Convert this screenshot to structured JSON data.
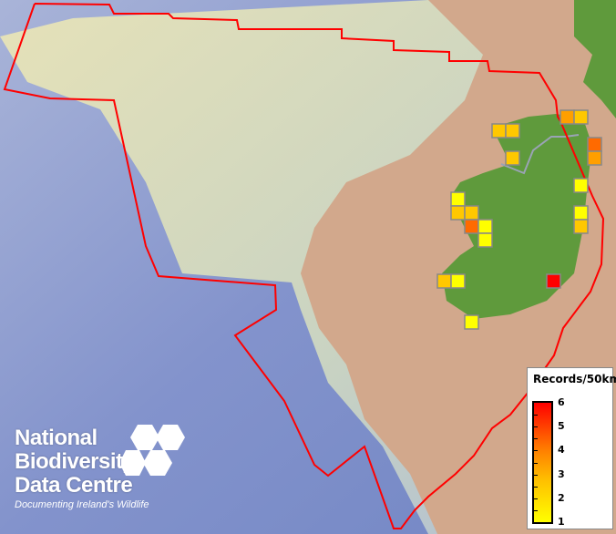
{
  "legend": {
    "title": "Records/50km",
    "ticks": [
      6,
      5,
      4,
      3,
      2,
      1
    ],
    "min": 1,
    "max": 6,
    "colors": {
      "low": "#ffff00",
      "high": "#ff0000"
    }
  },
  "logo": {
    "lines": [
      "National",
      "Biodiversity",
      "Data Centre"
    ],
    "tagline": "Documenting Ireland's Wildlife"
  },
  "colors": {
    "boundary": "#ff0000",
    "land": "#5f9a3c",
    "seabed_shallow": "#d4a98c",
    "deep": "#7d8fc8"
  },
  "records": [
    {
      "cell": "A",
      "count": 3
    },
    {
      "cell": "B",
      "count": 2
    },
    {
      "cell": "C",
      "count": 2
    },
    {
      "cell": "D",
      "count": 2
    },
    {
      "cell": "E",
      "count": 4
    },
    {
      "cell": "F",
      "count": 3
    },
    {
      "cell": "G",
      "count": 2
    },
    {
      "cell": "H",
      "count": 1
    },
    {
      "cell": "I",
      "count": 1
    },
    {
      "cell": "J",
      "count": 2
    },
    {
      "cell": "K",
      "count": 2
    },
    {
      "cell": "L",
      "count": 4
    },
    {
      "cell": "M",
      "count": 1
    },
    {
      "cell": "N",
      "count": 1
    },
    {
      "cell": "O",
      "count": 1
    },
    {
      "cell": "P",
      "count": 2
    },
    {
      "cell": "Q",
      "count": 6
    },
    {
      "cell": "R",
      "count": 2
    },
    {
      "cell": "S",
      "count": 1
    },
    {
      "cell": "T",
      "count": 1
    }
  ]
}
